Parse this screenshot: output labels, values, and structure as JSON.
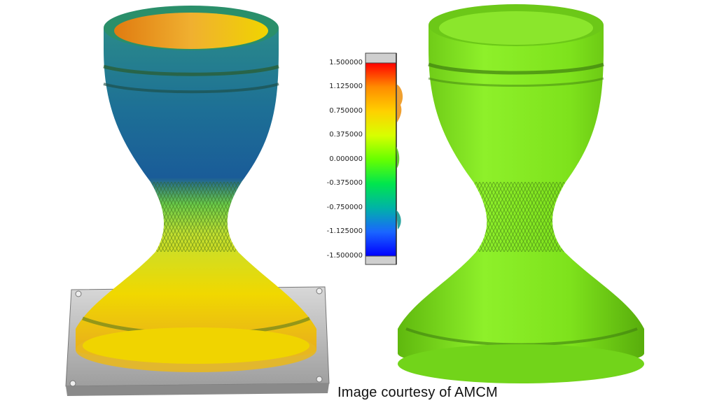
{
  "colormap": {
    "labels": [
      "1.500000",
      "1.125000",
      "0.750000",
      "0.375000",
      "0.000000",
      "-0.375000",
      "-0.750000",
      "-1.125000",
      "-1.500000"
    ],
    "colors": [
      "#ff0000",
      "#ff8c00",
      "#ffd000",
      "#d8ff00",
      "#66ff00",
      "#00e64d",
      "#00b3a6",
      "#1a66ff",
      "#0000ff"
    ]
  },
  "caption": "Image courtesy of AMCM",
  "colors": {
    "nominal_part": "#7fe51a",
    "scan_top": "#1f7a9a",
    "scan_bottom": "#f0d400",
    "base_plate": "#c9c9c9"
  }
}
